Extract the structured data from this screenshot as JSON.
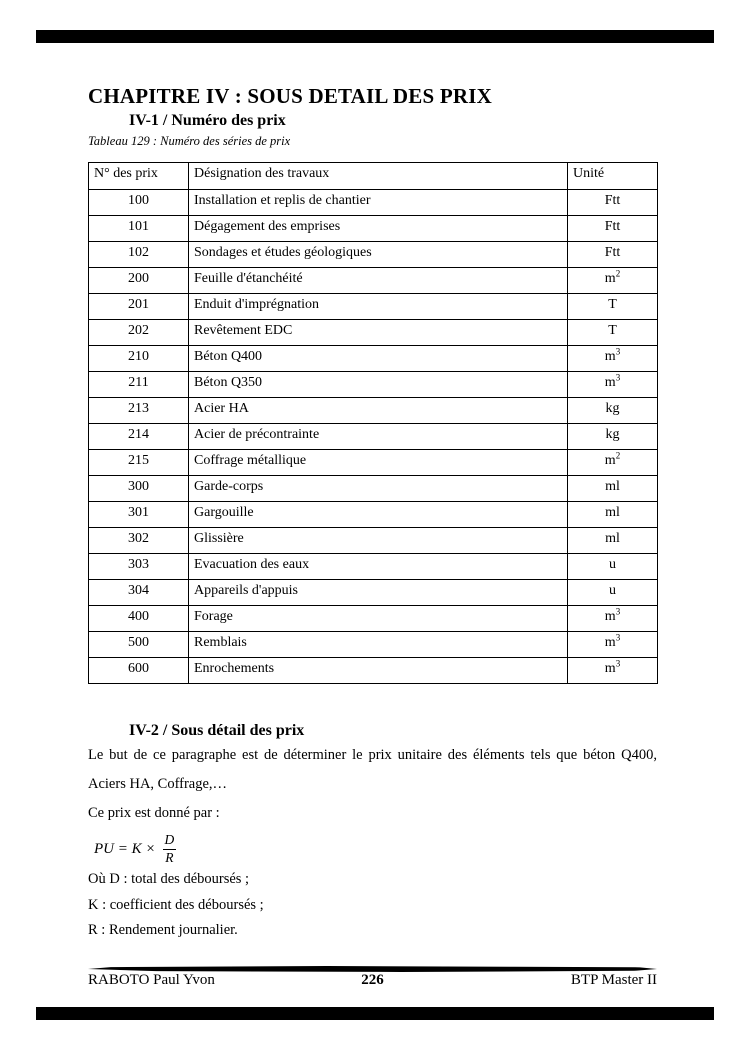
{
  "page": {
    "title": "CHAPITRE IV : SOUS DETAIL DES PRIX",
    "section1": {
      "heading": "IV-1 / Numéro des prix",
      "caption": "Tableau 129 : Numéro des séries de prix"
    },
    "table": {
      "headers": [
        "N° des prix",
        "Désignation des travaux",
        "Unité"
      ],
      "rows": [
        [
          "100",
          "Installation et replis de chantier",
          "Ftt"
        ],
        [
          "101",
          "Dégagement des emprises",
          "Ftt"
        ],
        [
          "102",
          "Sondages et études géologiques",
          "Ftt"
        ],
        [
          "200",
          "Feuille d'étanchéité",
          "m^2"
        ],
        [
          "201",
          "Enduit d'imprégnation",
          "T"
        ],
        [
          "202",
          "Revêtement EDC",
          "T"
        ],
        [
          "210",
          "Béton Q400",
          "m^3"
        ],
        [
          "211",
          "Béton Q350",
          "m^3"
        ],
        [
          "213",
          "Acier HA",
          "kg"
        ],
        [
          "214",
          "Acier de précontrainte",
          "kg"
        ],
        [
          "215",
          "Coffrage métallique",
          "m^2"
        ],
        [
          "300",
          "Garde-corps",
          "ml"
        ],
        [
          "301",
          "Gargouille",
          "ml"
        ],
        [
          "302",
          "Glissière",
          "ml"
        ],
        [
          "303",
          "Evacuation des eaux",
          "u"
        ],
        [
          "304",
          "Appareils d'appuis",
          "u"
        ],
        [
          "400",
          "Forage",
          "m^3"
        ],
        [
          "500",
          "Remblais",
          "m^3"
        ],
        [
          "600",
          "Enrochements",
          "m^3"
        ]
      ]
    },
    "section2": {
      "heading": "IV-2 / Sous détail des prix",
      "para_line1": "Le but de ce paragraphe est de déterminer le prix unitaire des éléments tels que béton Q400,",
      "para_line2": "Aciers HA, Coffrage,…",
      "para_line3": "Ce prix est donné par :",
      "formula": {
        "lhs": "PU = K ×",
        "numerator": "D",
        "denominator": "R"
      },
      "definitions": {
        "d": "Où D : total des déboursés ;",
        "k": "K : coefficient des déboursés ;",
        "r": "R : Rendement journalier."
      }
    },
    "footer": {
      "author": "RABOTO Paul Yvon",
      "page_number": "226",
      "program": "BTP Master II"
    }
  },
  "colors": {
    "ink": "#000000",
    "paper": "#ffffff",
    "separator_bar": "#000000"
  }
}
